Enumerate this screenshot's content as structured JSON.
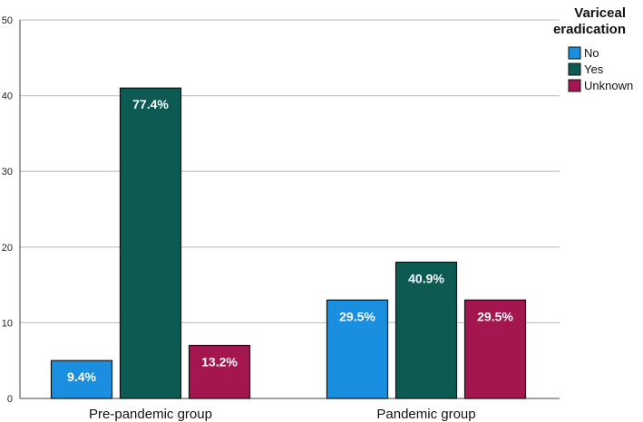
{
  "chart_data": {
    "type": "bar",
    "categories": [
      "Pre-pandemic group",
      "Pandemic group"
    ],
    "series": [
      {
        "name": "No",
        "color": "#1a8fe0",
        "values": [
          5,
          13
        ],
        "labels": [
          "9.4%",
          "29.5%"
        ]
      },
      {
        "name": "Yes",
        "color": "#0c5a52",
        "values": [
          41,
          18
        ],
        "labels": [
          "77.4%",
          "40.9%"
        ]
      },
      {
        "name": "Unknown",
        "color": "#a3164f",
        "values": [
          7,
          13
        ],
        "labels": [
          "13.2%",
          "29.5%"
        ]
      }
    ],
    "ylim": [
      0,
      50
    ],
    "yticks": [
      0,
      10,
      20,
      30,
      40,
      50
    ],
    "grid": true,
    "legend": {
      "title_lines": [
        "Variceal",
        "eradication"
      ],
      "position": "right"
    },
    "title": "",
    "xlabel": "",
    "ylabel": ""
  }
}
